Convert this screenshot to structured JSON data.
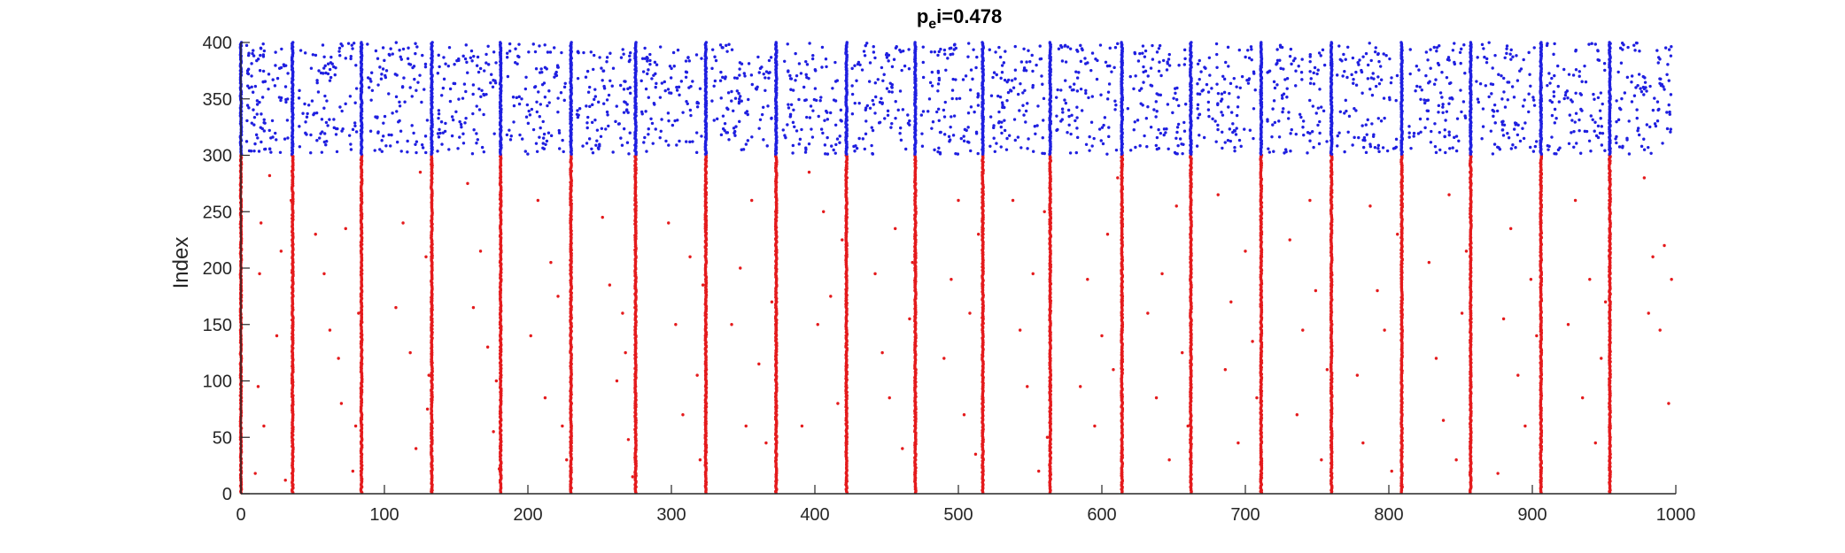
{
  "chart_data": {
    "type": "scatter",
    "title": {
      "main": "p",
      "subscript": "e",
      "rest": "i=0.478"
    },
    "xlabel": "",
    "ylabel": "Index",
    "xlim": [
      0,
      1000
    ],
    "ylim": [
      0,
      400
    ],
    "xticks": [
      0,
      100,
      200,
      300,
      400,
      500,
      600,
      700,
      800,
      900,
      1000
    ],
    "yticks": [
      0,
      50,
      100,
      150,
      200,
      250,
      300,
      350,
      400
    ],
    "grid": false,
    "legend": "none",
    "colors": {
      "excitatory": "#e41a1c",
      "inhibitory": "#1f1fe0",
      "axis": "#262626"
    },
    "populations": {
      "excitatory_index_range": [
        1,
        300
      ],
      "inhibitory_index_range": [
        301,
        400
      ]
    },
    "burst_times": [
      0,
      36,
      84,
      133,
      181,
      230,
      275,
      324,
      373,
      422,
      470,
      517,
      564,
      614,
      662,
      711,
      760,
      809,
      857,
      906,
      954
    ],
    "series": [
      {
        "population": "excitatory",
        "sparse_spikes": [
          [
            10,
            18
          ],
          [
            12,
            95
          ],
          [
            13,
            195
          ],
          [
            14,
            240
          ],
          [
            16,
            60
          ],
          [
            20,
            282
          ],
          [
            25,
            140
          ],
          [
            28,
            215
          ],
          [
            31,
            12
          ],
          [
            35,
            260
          ],
          [
            52,
            230
          ],
          [
            58,
            195
          ],
          [
            62,
            145
          ],
          [
            68,
            120
          ],
          [
            70,
            80
          ],
          [
            73,
            235
          ],
          [
            78,
            20
          ],
          [
            82,
            160
          ],
          [
            80,
            60
          ],
          [
            108,
            165
          ],
          [
            113,
            240
          ],
          [
            118,
            125
          ],
          [
            122,
            40
          ],
          [
            125,
            285
          ],
          [
            129,
            210
          ],
          [
            131,
            105
          ],
          [
            130,
            75
          ],
          [
            158,
            275
          ],
          [
            162,
            165
          ],
          [
            167,
            215
          ],
          [
            172,
            130
          ],
          [
            176,
            55
          ],
          [
            178,
            100
          ],
          [
            180,
            22
          ],
          [
            202,
            140
          ],
          [
            207,
            260
          ],
          [
            212,
            85
          ],
          [
            216,
            205
          ],
          [
            221,
            175
          ],
          [
            224,
            60
          ],
          [
            227,
            30
          ],
          [
            252,
            245
          ],
          [
            257,
            185
          ],
          [
            262,
            100
          ],
          [
            266,
            160
          ],
          [
            270,
            48
          ],
          [
            273,
            15
          ],
          [
            268,
            125
          ],
          [
            298,
            240
          ],
          [
            303,
            150
          ],
          [
            308,
            70
          ],
          [
            313,
            210
          ],
          [
            318,
            105
          ],
          [
            320,
            30
          ],
          [
            322,
            185
          ],
          [
            342,
            150
          ],
          [
            348,
            200
          ],
          [
            352,
            60
          ],
          [
            356,
            260
          ],
          [
            361,
            115
          ],
          [
            366,
            45
          ],
          [
            370,
            170
          ],
          [
            391,
            60
          ],
          [
            396,
            285
          ],
          [
            402,
            150
          ],
          [
            406,
            250
          ],
          [
            411,
            175
          ],
          [
            416,
            80
          ],
          [
            419,
            225
          ],
          [
            442,
            195
          ],
          [
            447,
            125
          ],
          [
            452,
            85
          ],
          [
            456,
            235
          ],
          [
            461,
            40
          ],
          [
            466,
            155
          ],
          [
            468,
            205
          ],
          [
            490,
            120
          ],
          [
            495,
            190
          ],
          [
            500,
            260
          ],
          [
            504,
            70
          ],
          [
            508,
            160
          ],
          [
            512,
            35
          ],
          [
            514,
            230
          ],
          [
            538,
            260
          ],
          [
            543,
            145
          ],
          [
            548,
            95
          ],
          [
            552,
            195
          ],
          [
            556,
            20
          ],
          [
            560,
            250
          ],
          [
            562,
            50
          ],
          [
            585,
            95
          ],
          [
            590,
            190
          ],
          [
            595,
            60
          ],
          [
            600,
            140
          ],
          [
            604,
            230
          ],
          [
            608,
            110
          ],
          [
            611,
            280
          ],
          [
            632,
            160
          ],
          [
            638,
            85
          ],
          [
            642,
            195
          ],
          [
            647,
            30
          ],
          [
            652,
            255
          ],
          [
            656,
            125
          ],
          [
            660,
            60
          ],
          [
            681,
            265
          ],
          [
            686,
            110
          ],
          [
            690,
            170
          ],
          [
            695,
            45
          ],
          [
            700,
            215
          ],
          [
            705,
            135
          ],
          [
            708,
            85
          ],
          [
            731,
            225
          ],
          [
            736,
            70
          ],
          [
            740,
            145
          ],
          [
            745,
            260
          ],
          [
            749,
            180
          ],
          [
            753,
            30
          ],
          [
            757,
            110
          ],
          [
            778,
            105
          ],
          [
            782,
            45
          ],
          [
            787,
            255
          ],
          [
            792,
            180
          ],
          [
            797,
            145
          ],
          [
            802,
            20
          ],
          [
            806,
            230
          ],
          [
            828,
            205
          ],
          [
            833,
            120
          ],
          [
            838,
            65
          ],
          [
            842,
            265
          ],
          [
            847,
            30
          ],
          [
            851,
            160
          ],
          [
            854,
            215
          ],
          [
            876,
            18
          ],
          [
            880,
            155
          ],
          [
            885,
            235
          ],
          [
            890,
            105
          ],
          [
            895,
            60
          ],
          [
            899,
            190
          ],
          [
            903,
            140
          ],
          [
            925,
            150
          ],
          [
            930,
            260
          ],
          [
            935,
            85
          ],
          [
            940,
            190
          ],
          [
            944,
            45
          ],
          [
            948,
            120
          ],
          [
            951,
            170
          ],
          [
            978,
            280
          ],
          [
            981,
            160
          ],
          [
            984,
            210
          ],
          [
            989,
            145
          ],
          [
            992,
            220
          ],
          [
            995,
            80
          ],
          [
            997,
            190
          ]
        ]
      },
      {
        "population": "inhibitory",
        "inter_burst_density": "~90 spikes per inter-burst interval, indices 301–400"
      }
    ]
  }
}
